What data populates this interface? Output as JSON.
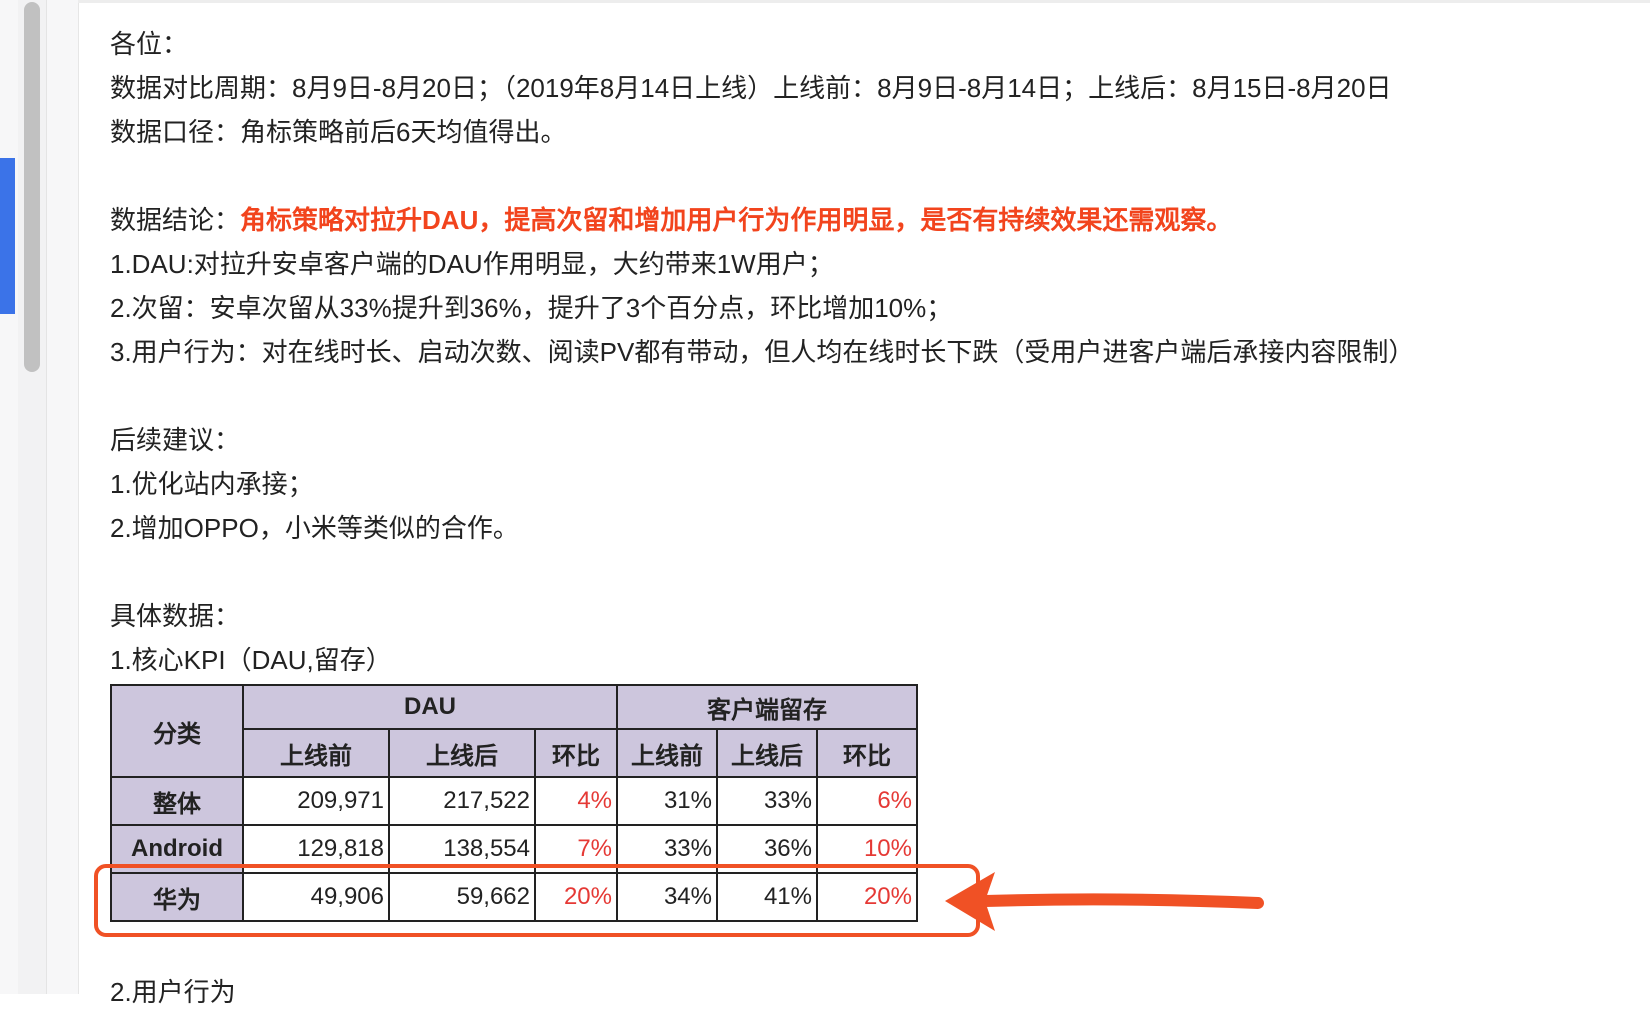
{
  "greeting": "各位：",
  "period_line": "数据对比周期：8月9日-8月20日；（2019年8月14日上线）上线前：8月9日-8月14日；上线后：8月15日-8月20日",
  "caliber_line": "数据口径：角标策略前后6天均值得出。",
  "conclusion": {
    "label": "数据结论：",
    "highlight": "角标策略对拉升DAU，提高次留和增加用户行为作用明显，是否有持续效果还需观察。",
    "points": [
      "1.DAU:对拉升安卓客户端的DAU作用明显，大约带来1W用户；",
      "2.次留：安卓次留从33%提升到36%，提升了3个百分点，环比增加10%；",
      "3.用户行为：对在线时长、启动次数、阅读PV都有带动，但人均在线时长下跌（受用户进客户端后承接内容限制）"
    ]
  },
  "suggestions": {
    "title": "后续建议：",
    "items": [
      "1.优化站内承接；",
      "2.增加OPPO，小米等类似的合作。"
    ]
  },
  "details": {
    "title": "具体数据：",
    "section1": "1.核心KPI（DAU,留存）",
    "section2": "2.用户行为"
  },
  "table": {
    "category_header": "分类",
    "group_dau": "DAU",
    "group_retention": "客户端留存",
    "sub_before": "上线前",
    "sub_after": "上线后",
    "sub_ratio": "环比",
    "rows": [
      {
        "name": "整体",
        "dau_before": "209,971",
        "dau_after": "217,522",
        "dau_ratio": "4%",
        "ret_before": "31%",
        "ret_after": "33%",
        "ret_ratio": "6%"
      },
      {
        "name": "Android",
        "dau_before": "129,818",
        "dau_after": "138,554",
        "dau_ratio": "7%",
        "ret_before": "33%",
        "ret_after": "36%",
        "ret_ratio": "10%"
      },
      {
        "name": "华为",
        "dau_before": "49,906",
        "dau_after": "59,662",
        "dau_ratio": "20%",
        "ret_before": "34%",
        "ret_after": "41%",
        "ret_ratio": "20%"
      }
    ]
  },
  "colors": {
    "highlight_text": "#f2441d",
    "ratio_text": "#e53935",
    "table_header_bg": "#cdc6dd",
    "annotation": "#f05125",
    "rail_accent": "#3b73e8"
  }
}
